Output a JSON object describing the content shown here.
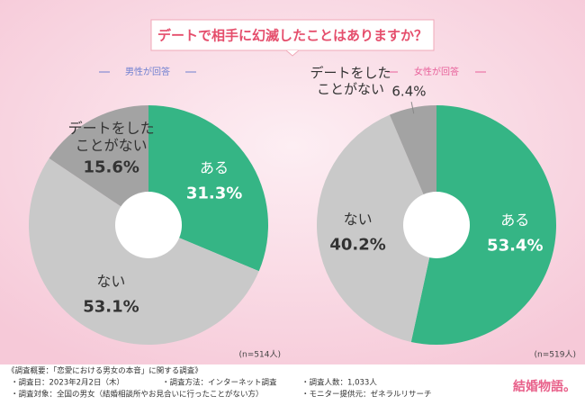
{
  "header": {
    "title": "デートで相手に幻滅したことはありますか？"
  },
  "chart_data": [
    {
      "type": "pie",
      "title": "男性が回答",
      "note": "(n=514人)",
      "categories": [
        "ある",
        "ない",
        "デートをした\nことがない"
      ],
      "values": [
        31.3,
        53.1,
        15.6
      ],
      "value_labels": [
        "31.3%",
        "53.1%",
        "15.6%"
      ],
      "colors": [
        "#35b585",
        "#c9c9c9",
        "#a3a3a3"
      ]
    },
    {
      "type": "pie",
      "title": "女性が回答",
      "note": "(n=519人)",
      "categories": [
        "ある",
        "ない",
        "デートをした\nことがない"
      ],
      "values": [
        53.4,
        40.2,
        6.4
      ],
      "value_labels": [
        "53.4%",
        "40.2%",
        "6.4%"
      ],
      "colors": [
        "#35b585",
        "#c9c9c9",
        "#a3a3a3"
      ]
    }
  ],
  "footer": {
    "heading": "《調査概要：「恋愛における男女の本音」に関する調査》",
    "items": [
      "・調査日：2023年2月2日（木）",
      "・調査方法：インターネット調査",
      "・調査人数：1,033人",
      "・調査対象：全国の男女（結婚相談所やお見合いに行ったことがない方）",
      "・モニター提供元：ゼネラルリサーチ"
    ],
    "logo": "結婚物語。"
  }
}
